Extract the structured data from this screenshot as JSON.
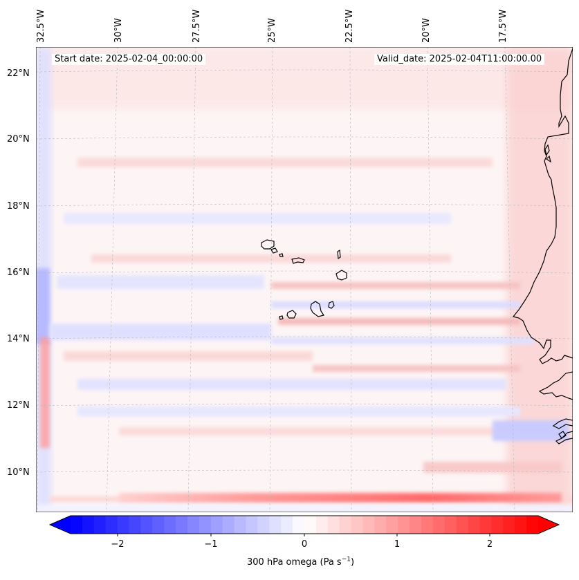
{
  "map": {
    "annotations": {
      "start_date": "Start date: 2025-02-04_00:00:00",
      "valid_date": "Valid_date: 2025-02-04T11:00:00.00"
    },
    "longitude_labels": [
      "32.5°W",
      "30°W",
      "27.5°W",
      "25°W",
      "22.5°W",
      "20°W",
      "17.5°W"
    ],
    "latitude_labels": [
      "22°N",
      "20°N",
      "18°N",
      "16°N",
      "14°N",
      "12°N",
      "10°N"
    ],
    "field_colors": {
      "positive": "#ff0000",
      "negative": "#0000ff",
      "neutral": "#ffffff",
      "coastline": "#000000"
    }
  },
  "colorbar": {
    "ticks": [
      "−2",
      "−1",
      "0",
      "1",
      "2"
    ],
    "label_main": "300 hPa omega (Pa s",
    "label_sup": "−1",
    "label_close": ")",
    "range": [
      -2.7,
      2.7
    ]
  }
}
